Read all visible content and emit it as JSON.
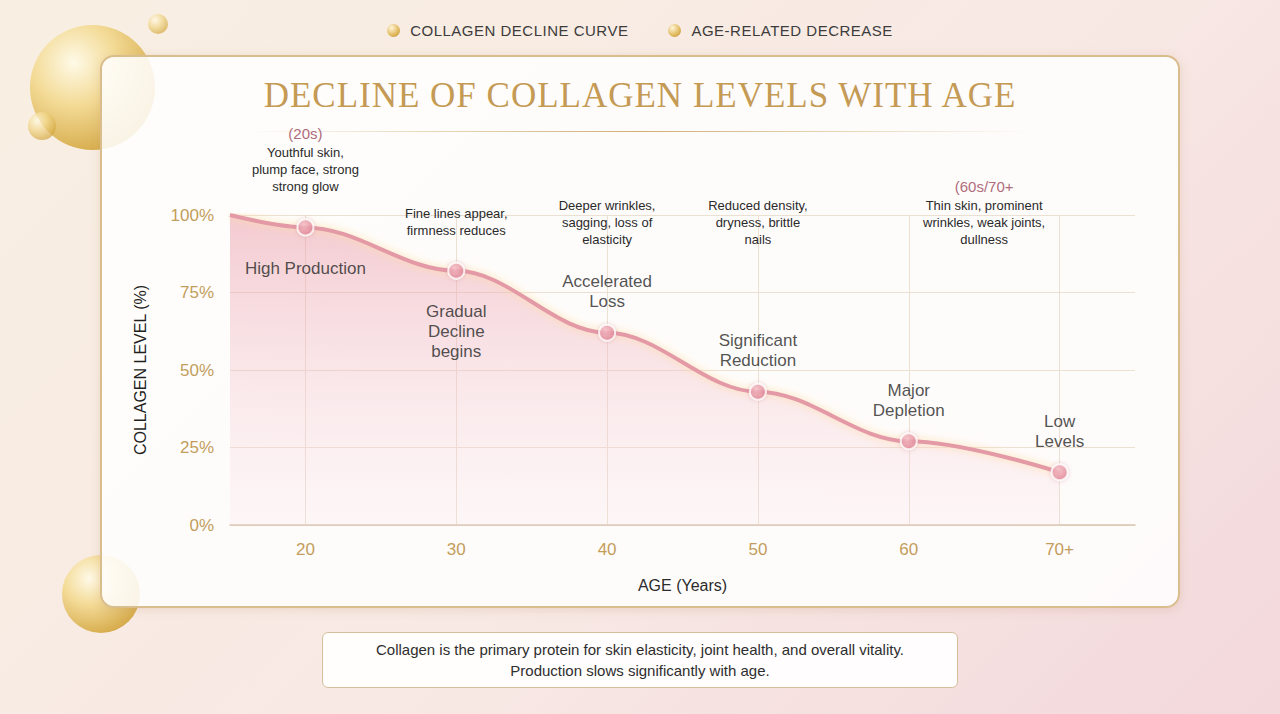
{
  "chart_data": {
    "type": "line",
    "title": "DECLINE OF COLLAGEN LEVELS WITH AGE",
    "header_labels": [
      "COLLAGEN DECLINE CURVE",
      "AGE-RELATED DECREASE"
    ],
    "x_label": "AGE (Years)",
    "y_label": "COLLAGEN LEVEL (%)",
    "x": [
      15,
      20,
      30,
      40,
      50,
      60,
      70
    ],
    "values": [
      100,
      96,
      82,
      62,
      43,
      27,
      17
    ],
    "color": "#e39aa6",
    "line_style": "smooth",
    "marker": "circle",
    "xlim": [
      15,
      75
    ],
    "xticks": [
      20,
      30,
      40,
      50,
      60,
      {
        "value": 70,
        "label": "70+"
      }
    ],
    "ylim": [
      0,
      100
    ],
    "yticks": [
      {
        "value": 0,
        "label": "0%"
      },
      {
        "value": 25,
        "label": "25%"
      },
      {
        "value": 50,
        "label": "50%"
      },
      {
        "value": 75,
        "label": "75%"
      },
      {
        "value": 100,
        "label": "100%"
      }
    ],
    "grid": true,
    "point_labels": [
      {
        "x": 20,
        "lines": [
          "High Production"
        ]
      },
      {
        "x": 30,
        "lines": [
          "Gradual",
          "Decline",
          "begins"
        ]
      },
      {
        "x": 40,
        "lines": [
          "Accelerated",
          "Loss"
        ]
      },
      {
        "x": 50,
        "lines": [
          "Significant",
          "Reduction"
        ]
      },
      {
        "x": 60,
        "lines": [
          "Major",
          "Depletion"
        ]
      },
      {
        "x": 70,
        "lines": [
          "Low",
          "Levels"
        ]
      }
    ],
    "stages": [
      {
        "x": 20,
        "heading": "(20s)",
        "text": "Youthful skin, plump face, strong strong glow"
      },
      {
        "x": 30,
        "text": "Fine lines appear, firmness reduces"
      },
      {
        "x": 40,
        "text": "Deeper wrinkles, sagging, loss of elasticity"
      },
      {
        "x": 50,
        "text": "Reduced density, dryness, brittle nails"
      },
      {
        "x": 65,
        "heading": "(60s/70+",
        "text": "Thin skin, prominent wrinkles, weak joints, dullness"
      }
    ],
    "footnote": [
      "Collagen is the primary protein for skin elasticity, joint health, and overall vitality.",
      "Production slows significantly with age."
    ]
  }
}
